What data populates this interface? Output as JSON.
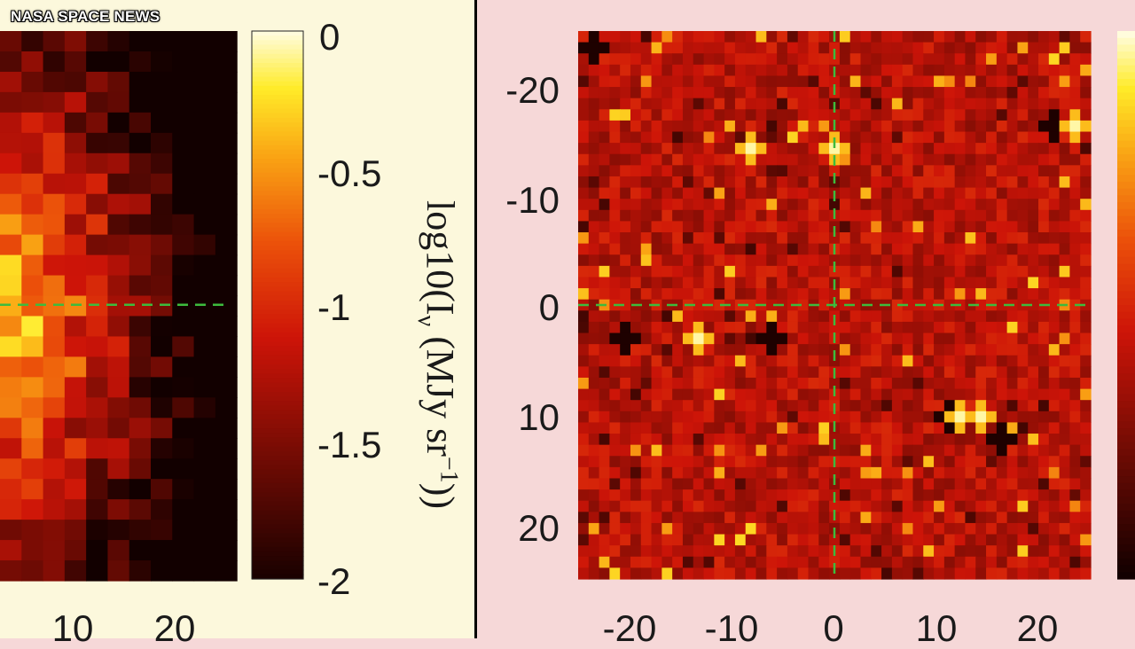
{
  "watermark": "NASA SPACE NEWS",
  "chart_data": [
    {
      "type": "heatmap",
      "panel": "left",
      "colormap": "hot",
      "colorbar": {
        "label": "log10(I_ν (MJy sr^-1))",
        "label_parts": {
          "prefix": "log10(I",
          "sub": "ν",
          "middle": " (MJy sr",
          "sup": "−1",
          "suffix": "))"
        },
        "ticks": [
          "0",
          "-0.5",
          "-1",
          "-1.5",
          "-2"
        ],
        "range": [
          -2,
          0
        ]
      },
      "x_ticks_visible": [
        "10",
        "20"
      ],
      "crosshair": {
        "horizontal_y": 0,
        "style": "dashed",
        "color": "#3dbb3d"
      },
      "description_values": {
        "bright_region": "left edge near y=0",
        "grid_cells": 27
      }
    },
    {
      "type": "heatmap",
      "panel": "right",
      "colormap": "hot",
      "y_ticks": [
        "-20",
        "-10",
        "0",
        "10",
        "20"
      ],
      "x_ticks": [
        "-20",
        "-10",
        "0",
        "10",
        "20"
      ],
      "xlim": [
        -25,
        25
      ],
      "ylim": [
        -25,
        25
      ],
      "y_reversed": true,
      "crosshair": {
        "x": 0,
        "y": 0,
        "style": "dashed",
        "color": "#3dbb3d"
      },
      "bright_spots": [
        {
          "x": -13.5,
          "y": 3.5
        },
        {
          "x": 14,
          "y": 10.5
        },
        {
          "x": 12,
          "y": 10.5
        },
        {
          "x": 23,
          "y": -16.5
        },
        {
          "x": 0,
          "y": -14.5
        },
        {
          "x": -8,
          "y": -14
        }
      ],
      "dark_spots": [
        {
          "x": -20,
          "y": 3
        },
        {
          "x": -6,
          "y": 3.5
        },
        {
          "x": 21,
          "y": -16.5
        },
        {
          "x": 11,
          "y": 10
        },
        {
          "x": 16,
          "y": 12
        },
        {
          "x": -23,
          "y": -23
        }
      ],
      "grid_cells": 49
    }
  ]
}
